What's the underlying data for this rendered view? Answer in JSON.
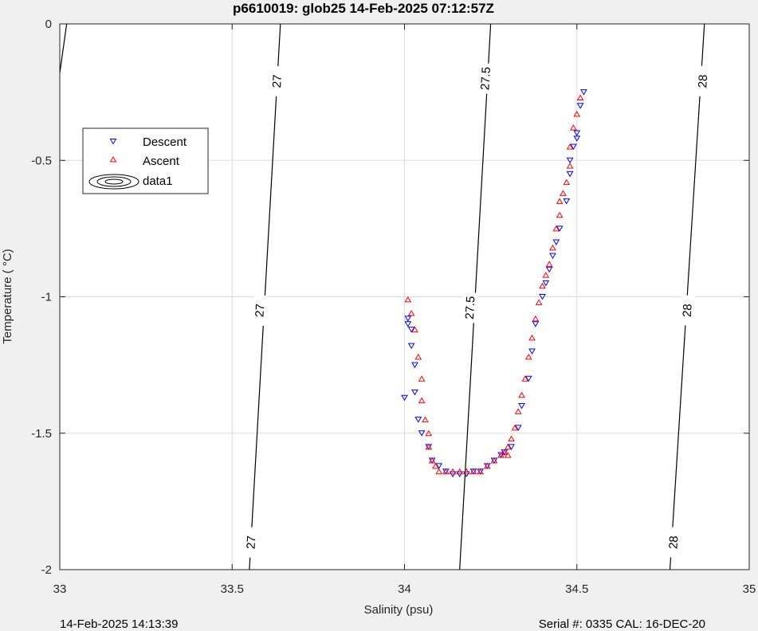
{
  "chart_data": {
    "type": "scatter",
    "title": "p6610019: glob25 14-Feb-2025 07:12:57Z",
    "xlabel": "Salinity (psu)",
    "ylabel": "Temperature (   °C)",
    "xlim": [
      33,
      35
    ],
    "ylim": [
      -2,
      0
    ],
    "x_ticks": [
      "33",
      "33.5",
      "34",
      "34.5",
      "35"
    ],
    "y_ticks": [
      "0",
      "-0.5",
      "-1",
      "-1.5",
      "-2"
    ],
    "grid": true,
    "legend_position": "top-left",
    "footer_left": "14-Feb-2025 14:13:39",
    "footer_right": "Serial #: 0335  CAL: 16-DEC-20",
    "colors": {
      "descent": "#0000ff",
      "ascent": "#ff0000",
      "contour": "#000000",
      "grid": "#dcdcdc"
    },
    "legend": [
      {
        "label": "Descent",
        "marker": "triangle-down",
        "color": "#0000ff"
      },
      {
        "label": "Ascent",
        "marker": "triangle-up",
        "color": "#ff0000"
      },
      {
        "label": "data1",
        "marker": "contour-ellipses",
        "color": "#000000"
      }
    ],
    "contours": [
      {
        "label": "27",
        "points": [
          [
            33.0,
            -0.18
          ],
          [
            33.02,
            0.0
          ]
        ],
        "labels_at": []
      },
      {
        "label": "27",
        "points": [
          [
            33.55,
            -2.0
          ],
          [
            33.64,
            0.0
          ]
        ],
        "labels_at": [
          [
            33.63,
            -0.21
          ],
          [
            33.58,
            -1.05
          ],
          [
            33.555,
            -1.9
          ]
        ]
      },
      {
        "label": "27.5",
        "points": [
          [
            34.16,
            -2.0
          ],
          [
            34.25,
            0.0
          ]
        ],
        "labels_at": [
          [
            34.235,
            -0.2
          ],
          [
            34.19,
            -1.04
          ]
        ]
      },
      {
        "label": "28",
        "points": [
          [
            34.77,
            -2.0
          ],
          [
            34.87,
            0.0
          ]
        ],
        "labels_at": [
          [
            34.865,
            -0.21
          ],
          [
            34.82,
            -1.05
          ],
          [
            34.78,
            -1.9
          ]
        ]
      }
    ],
    "series": [
      {
        "name": "Descent",
        "marker": "triangle-down",
        "color": "#0000ff",
        "x": [
          34.52,
          34.51,
          34.5,
          34.5,
          34.49,
          34.48,
          34.48,
          34.47,
          34.45,
          34.44,
          34.43,
          34.42,
          34.41,
          34.4,
          34.38,
          34.37,
          34.36,
          34.34,
          34.33,
          34.31,
          34.29,
          34.28,
          34.26,
          34.24,
          34.22,
          34.2,
          34.18,
          34.16,
          34.14,
          34.12,
          34.1,
          34.08,
          34.07,
          34.05,
          34.04,
          34.03,
          34.03,
          34.02,
          34.02,
          34.01,
          34.01,
          34.0
        ],
        "y": [
          -0.25,
          -0.3,
          -0.4,
          -0.42,
          -0.45,
          -0.5,
          -0.55,
          -0.65,
          -0.75,
          -0.8,
          -0.85,
          -0.9,
          -0.95,
          -1.0,
          -1.1,
          -1.2,
          -1.3,
          -1.4,
          -1.48,
          -1.55,
          -1.57,
          -1.58,
          -1.6,
          -1.62,
          -1.64,
          -1.64,
          -1.65,
          -1.65,
          -1.65,
          -1.64,
          -1.62,
          -1.6,
          -1.55,
          -1.5,
          -1.45,
          -1.35,
          -1.25,
          -1.18,
          -1.12,
          -1.1,
          -1.08,
          -1.37
        ]
      },
      {
        "name": "Ascent",
        "marker": "triangle-up",
        "color": "#ff0000",
        "x": [
          34.51,
          34.5,
          34.49,
          34.48,
          34.48,
          34.47,
          34.46,
          34.45,
          34.45,
          34.44,
          34.43,
          34.42,
          34.41,
          34.4,
          34.39,
          34.38,
          34.37,
          34.36,
          34.35,
          34.34,
          34.33,
          34.32,
          34.31,
          34.3,
          34.3,
          34.29,
          34.28,
          34.26,
          34.24,
          34.22,
          34.2,
          34.18,
          34.16,
          34.14,
          34.12,
          34.1,
          34.09,
          34.08,
          34.07,
          34.07,
          34.06,
          34.05,
          34.05,
          34.04,
          34.03,
          34.02,
          34.01
        ],
        "y": [
          -0.27,
          -0.33,
          -0.38,
          -0.45,
          -0.52,
          -0.58,
          -0.62,
          -0.65,
          -0.7,
          -0.75,
          -0.82,
          -0.88,
          -0.92,
          -0.96,
          -1.02,
          -1.08,
          -1.15,
          -1.22,
          -1.3,
          -1.36,
          -1.42,
          -1.48,
          -1.52,
          -1.55,
          -1.58,
          -1.57,
          -1.58,
          -1.6,
          -1.62,
          -1.64,
          -1.64,
          -1.64,
          -1.64,
          -1.64,
          -1.64,
          -1.64,
          -1.62,
          -1.6,
          -1.55,
          -1.5,
          -1.45,
          -1.38,
          -1.3,
          -1.22,
          -1.12,
          -1.06,
          -1.01
        ]
      }
    ]
  }
}
